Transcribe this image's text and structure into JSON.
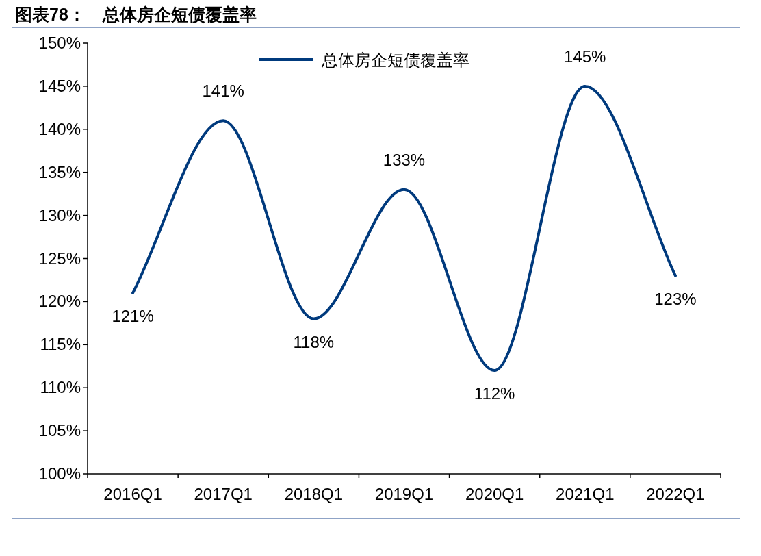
{
  "chart_data": {
    "type": "line",
    "title": "图表78：　总体房企短债覆盖率",
    "categories": [
      "2016Q1",
      "2017Q1",
      "2018Q1",
      "2019Q1",
      "2020Q1",
      "2021Q1",
      "2022Q1"
    ],
    "series": [
      {
        "name": "总体房企短债覆盖率",
        "color": "#003a7d",
        "values": [
          121,
          141,
          118,
          133,
          112,
          145,
          123
        ],
        "value_labels": [
          "121%",
          "141%",
          "118%",
          "133%",
          "112%",
          "145%",
          "123%"
        ]
      }
    ],
    "ylim": [
      100,
      150
    ],
    "yticks": [
      {
        "value": 100,
        "label": "100%"
      },
      {
        "value": 105,
        "label": "105%"
      },
      {
        "value": 110,
        "label": "110%"
      },
      {
        "value": 115,
        "label": "115%"
      },
      {
        "value": 120,
        "label": "120%"
      },
      {
        "value": 125,
        "label": "125%"
      },
      {
        "value": 130,
        "label": "130%"
      },
      {
        "value": 135,
        "label": "135%"
      },
      {
        "value": 140,
        "label": "140%"
      },
      {
        "value": 145,
        "label": "145%"
      },
      {
        "value": 150,
        "label": "150%"
      }
    ],
    "legend": "top",
    "grid": false,
    "marker": "none",
    "line_style": "solid"
  }
}
